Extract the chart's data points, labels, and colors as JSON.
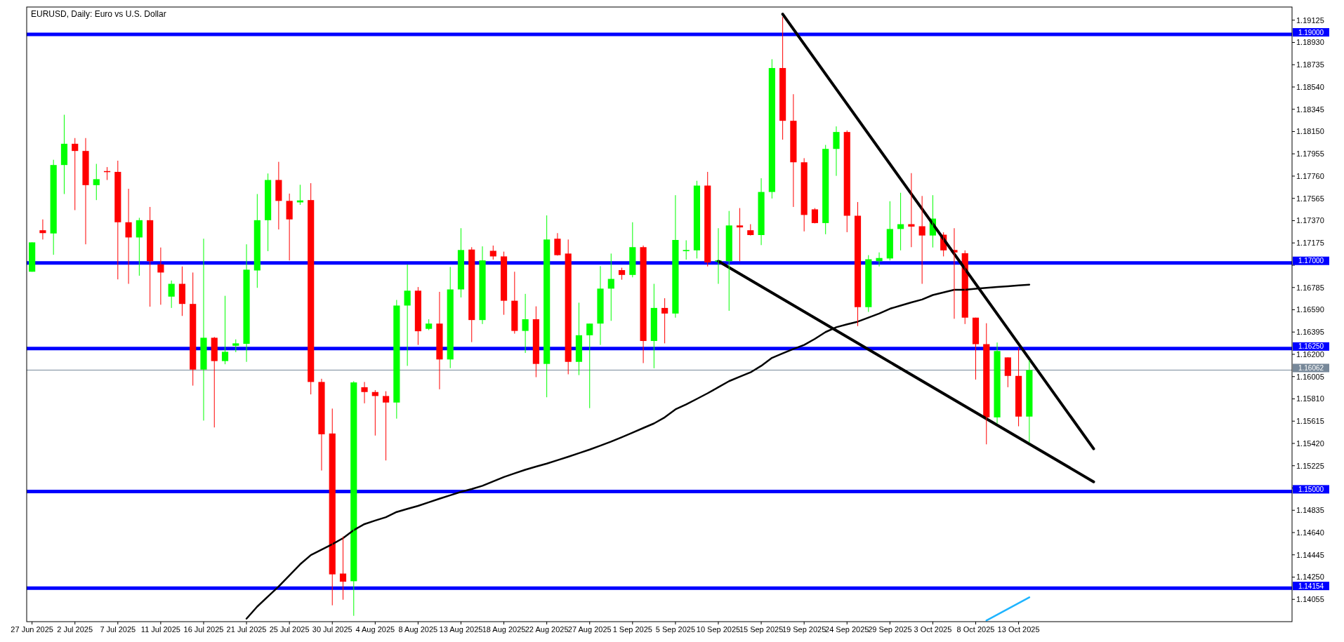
{
  "chart_data": {
    "type": "candlestick",
    "title": "EURUSD, Daily:  Euro vs U.S. Dollar",
    "categories": [
      "27 Jun 2025",
      null,
      null,
      null,
      "2 Jul 2025",
      null,
      null,
      null,
      "7 Jul 2025",
      null,
      null,
      null,
      "11 Jul 2025",
      null,
      null,
      null,
      "16 Jul 2025",
      null,
      null,
      null,
      "21 Jul 2025",
      null,
      null,
      null,
      "25 Jul 2025",
      null,
      null,
      null,
      "30 Jul 2025",
      null,
      null,
      null,
      "4 Aug 2025",
      null,
      null,
      null,
      "8 Aug 2025",
      null,
      null,
      null,
      "13 Aug 2025",
      null,
      null,
      null,
      "18 Aug 2025",
      null,
      null,
      null,
      "22 Aug 2025",
      null,
      null,
      null,
      "27 Aug 2025",
      null,
      null,
      null,
      "1 Sep 2025",
      null,
      null,
      null,
      "5 Sep 2025",
      null,
      null,
      null,
      "10 Sep 2025",
      null,
      null,
      null,
      "15 Sep 2025",
      null,
      null,
      null,
      "19 Sep 2025",
      null,
      null,
      null,
      "24 Sep 2025",
      null,
      null,
      null,
      "29 Sep 2025",
      null,
      null,
      null,
      "3 Oct 2025",
      null,
      null,
      null,
      "8 Oct 2025",
      null,
      null,
      null,
      "13 Oct 2025",
      null,
      null,
      null,
      null,
      null,
      null,
      null,
      null,
      null,
      null,
      null,
      null,
      null,
      null,
      null,
      null,
      null,
      null,
      null,
      null,
      null,
      null,
      null,
      null,
      null
    ],
    "ohlc": [
      [
        1.16923,
        1.1718,
        1.16923,
        1.1718
      ],
      [
        1.17286,
        1.17381,
        1.17205,
        1.17261
      ],
      [
        1.17258,
        1.17903,
        1.17071,
        1.17857
      ],
      [
        1.17857,
        1.18297,
        1.17603,
        1.18043
      ],
      [
        1.18043,
        1.18093,
        1.17462,
        1.1798
      ],
      [
        1.1798,
        1.18093,
        1.17163,
        1.17681
      ],
      [
        1.17681,
        1.17867,
        1.1755,
        1.17733
      ],
      [
        1.17804,
        1.17839,
        1.17726,
        1.17797
      ],
      [
        1.17797,
        1.17895,
        1.16856,
        1.17356
      ],
      [
        1.17356,
        1.17649,
        1.16817,
        1.17223
      ],
      [
        1.17223,
        1.17395,
        1.16888,
        1.17374
      ],
      [
        1.17374,
        1.1749,
        1.16617,
        1.17015
      ],
      [
        1.16987,
        1.17135,
        1.16634,
        1.16916
      ],
      [
        1.16705,
        1.16846,
        1.16606,
        1.16817
      ],
      [
        1.16817,
        1.16969,
        1.16536,
        1.16641
      ],
      [
        1.16641,
        1.16916,
        1.15926,
        1.16067
      ],
      [
        1.16067,
        1.17212,
        1.1562,
        1.16345
      ],
      [
        1.16345,
        1.16352,
        1.1556,
        1.16141
      ],
      [
        1.16141,
        1.16712,
        1.16113,
        1.16222
      ],
      [
        1.16275,
        1.16331,
        1.16219,
        1.16296
      ],
      [
        1.16292,
        1.17163,
        1.16134,
        1.16941
      ],
      [
        1.16934,
        1.17603,
        1.16782,
        1.17374
      ],
      [
        1.17374,
        1.17783,
        1.17103,
        1.17726
      ],
      [
        1.17726,
        1.17885,
        1.17293,
        1.17543
      ],
      [
        1.17543,
        1.17607,
        1.17022,
        1.17381
      ],
      [
        1.1753,
        1.17684,
        1.17508,
        1.17547
      ],
      [
        1.1755,
        1.17698,
        1.15849,
        1.15958
      ],
      [
        1.15958,
        1.15986,
        1.15183,
        1.155
      ],
      [
        1.15507,
        1.15725,
        1.14003,
        1.14274
      ],
      [
        1.14281,
        1.14605,
        1.14052,
        1.1421
      ],
      [
        1.14214,
        1.15965,
        1.13911,
        1.15954
      ],
      [
        1.15912,
        1.15958,
        1.15771,
        1.1587
      ],
      [
        1.1587,
        1.15887,
        1.15489,
        1.15835
      ],
      [
        1.15835,
        1.15877,
        1.15271,
        1.15778
      ],
      [
        1.15778,
        1.16676,
        1.15637,
        1.16627
      ],
      [
        1.16627,
        1.16987,
        1.16099,
        1.16757
      ],
      [
        1.16757,
        1.16789,
        1.16282,
        1.16402
      ],
      [
        1.16423,
        1.16507,
        1.16412,
        1.16469
      ],
      [
        1.16469,
        1.16747,
        1.15894,
        1.16155
      ],
      [
        1.16155,
        1.16965,
        1.16079,
        1.16768
      ],
      [
        1.16768,
        1.17304,
        1.16698,
        1.17113
      ],
      [
        1.17117,
        1.17138,
        1.16307,
        1.165
      ],
      [
        1.165,
        1.17145,
        1.16465,
        1.17022
      ],
      [
        1.17106,
        1.17152,
        1.17029,
        1.17057
      ],
      [
        1.17057,
        1.17099,
        1.16546,
        1.16669
      ],
      [
        1.16669,
        1.16923,
        1.16381,
        1.16405
      ],
      [
        1.16405,
        1.16729,
        1.16212,
        1.16507
      ],
      [
        1.16507,
        1.1662,
        1.16,
        1.16116
      ],
      [
        1.16116,
        1.17416,
        1.15824,
        1.17205
      ],
      [
        1.17212,
        1.17261,
        1.17064,
        1.17068
      ],
      [
        1.17082,
        1.17205,
        1.16025,
        1.16134
      ],
      [
        1.16134,
        1.16652,
        1.16018,
        1.16367
      ],
      [
        1.16367,
        1.16469,
        1.15729,
        1.16469
      ],
      [
        1.16469,
        1.16972,
        1.16282,
        1.16775
      ],
      [
        1.16775,
        1.17082,
        1.16493,
        1.1686
      ],
      [
        1.16937,
        1.16958,
        1.16853,
        1.16895
      ],
      [
        1.16895,
        1.17356,
        1.16874,
        1.17138
      ],
      [
        1.17138,
        1.17152,
        1.16123,
        1.16317
      ],
      [
        1.16317,
        1.16817,
        1.16078,
        1.16606
      ],
      [
        1.16606,
        1.16691,
        1.16296,
        1.16557
      ],
      [
        1.16557,
        1.17593,
        1.16521,
        1.17201
      ],
      [
        1.17103,
        1.17198,
        1.17029,
        1.17113
      ],
      [
        1.1711,
        1.17719,
        1.17039,
        1.17677
      ],
      [
        1.17677,
        1.17797,
        1.16969,
        1.17004
      ],
      [
        1.17011,
        1.17304,
        1.16817,
        1.17022
      ],
      [
        1.17015,
        1.17455,
        1.16581,
        1.17328
      ],
      [
        1.17328,
        1.1748,
        1.17015,
        1.17311
      ],
      [
        1.17286,
        1.17339,
        1.1724,
        1.17244
      ],
      [
        1.17244,
        1.17741,
        1.17156,
        1.17621
      ],
      [
        1.17621,
        1.18783,
        1.17564,
        1.18706
      ],
      [
        1.18706,
        1.19153,
        1.18079,
        1.18244
      ],
      [
        1.18244,
        1.18477,
        1.1749,
        1.17881
      ],
      [
        1.17881,
        1.17917,
        1.17276,
        1.1742
      ],
      [
        1.17469,
        1.1748,
        1.17346,
        1.17349
      ],
      [
        1.17349,
        1.18033,
        1.17251,
        1.17998
      ],
      [
        1.17998,
        1.18195,
        1.17762,
        1.18146
      ],
      [
        1.18146,
        1.1816,
        1.17269,
        1.17413
      ],
      [
        1.17413,
        1.17533,
        1.16447,
        1.16613
      ],
      [
        1.16613,
        1.17068,
        1.16571,
        1.17032
      ],
      [
        1.17015,
        1.17092,
        1.16969,
        1.17043
      ],
      [
        1.17039,
        1.1754,
        1.17022,
        1.17297
      ],
      [
        1.17297,
        1.17614,
        1.1711,
        1.17339
      ],
      [
        1.17339,
        1.17786,
        1.17138,
        1.17318
      ],
      [
        1.17321,
        1.17586,
        1.16817,
        1.1724
      ],
      [
        1.1724,
        1.17593,
        1.17135,
        1.17388
      ],
      [
        1.17247,
        1.17268,
        1.17057,
        1.1711
      ],
      [
        1.17113,
        1.17304,
        1.16511,
        1.17092
      ],
      [
        1.17085,
        1.1711,
        1.16465,
        1.16521
      ],
      [
        1.16521,
        1.16521,
        1.15979,
        1.16289
      ],
      [
        1.16289,
        1.16472,
        1.15412,
        1.15648
      ],
      [
        1.15648,
        1.16303,
        1.15595,
        1.16229
      ],
      [
        1.16173,
        1.16173,
        1.15912,
        1.16011
      ],
      [
        1.16011,
        1.16254,
        1.1557,
        1.15655
      ],
      [
        1.15655,
        1.16148,
        1.15429,
        1.16062
      ],
      null,
      null,
      null,
      null,
      null,
      null,
      null,
      null,
      null,
      null,
      null,
      null,
      null,
      null,
      null,
      null,
      null,
      null,
      null,
      null,
      null,
      null,
      null,
      null
    ],
    "colors": [
      "#00ff00",
      "#ff0000",
      "#00ff00",
      "#00ff00",
      "#ff0000",
      "#ff0000",
      "#00ff00",
      "#ff0000",
      "#ff0000",
      "#ff0000",
      "#00ff00",
      "#ff0000",
      "#ff0000",
      "#00ff00",
      "#ff0000",
      "#ff0000",
      "#00ff00",
      "#ff0000",
      "#00ff00",
      "#00ff00",
      "#00ff00",
      "#00ff00",
      "#00ff00",
      "#ff0000",
      "#ff0000",
      "#00ff00",
      "#ff0000",
      "#ff0000",
      "#ff0000",
      "#ff0000",
      "#00ff00",
      "#ff0000",
      "#ff0000",
      "#ff0000",
      "#00ff00",
      "#00ff00",
      "#ff0000",
      "#00ff00",
      "#ff0000",
      "#00ff00",
      "#00ff00",
      "#ff0000",
      "#00ff00",
      "#ff0000",
      "#ff0000",
      "#ff0000",
      "#00ff00",
      "#ff0000",
      "#00ff00",
      "#ff0000",
      "#ff0000",
      "#00ff00",
      "#00ff00",
      "#00ff00",
      "#00ff00",
      "#ff0000",
      "#00ff00",
      "#ff0000",
      "#00ff00",
      "#ff0000",
      "#00ff00",
      "#00ff00",
      "#00ff00",
      "#ff0000",
      "#00ff00",
      "#00ff00",
      "#ff0000",
      "#ff0000",
      "#00ff00",
      "#00ff00",
      "#ff0000",
      "#ff0000",
      "#ff0000",
      "#ff0000",
      "#00ff00",
      "#00ff00",
      "#ff0000",
      "#ff0000",
      "#00ff00",
      "#00ff00",
      "#00ff00",
      "#00ff00",
      "#ff0000",
      "#ff0000",
      "#00ff00",
      "#ff0000",
      "#ff0000",
      "#ff0000",
      "#ff0000",
      "#ff0000",
      "#00ff00",
      "#ff0000",
      "#ff0000",
      "#00ff00",
      null,
      null,
      null,
      null,
      null,
      null,
      null,
      null,
      null,
      null,
      null,
      null,
      null,
      null,
      null,
      null,
      null,
      null,
      null,
      null,
      null,
      null,
      null,
      null
    ],
    "series": [
      {
        "type": "line",
        "color": "#000000",
        "values": [
          null,
          null,
          null,
          null,
          null,
          null,
          null,
          null,
          null,
          null,
          null,
          null,
          null,
          null,
          null,
          null,
          null,
          null,
          null,
          null,
          1.13886,
          1.13992,
          1.1408,
          1.14168,
          1.14265,
          1.14362,
          1.14443,
          1.1449,
          1.14538,
          1.14591,
          1.14661,
          1.14714,
          1.14745,
          1.14774,
          1.1482,
          1.14847,
          1.14873,
          1.14905,
          1.14936,
          1.14966,
          1.14996,
          1.15021,
          1.15049,
          1.15088,
          1.15126,
          1.15158,
          1.1519,
          1.15217,
          1.15243,
          1.15273,
          1.15303,
          1.15335,
          1.15366,
          1.15401,
          1.15436,
          1.15475,
          1.15514,
          1.15555,
          1.15595,
          1.15648,
          1.15718,
          1.15761,
          1.1581,
          1.15859,
          1.15912,
          1.15965,
          1.16004,
          1.16042,
          1.16099,
          1.16169,
          1.16208,
          1.16247,
          1.16282,
          1.16335,
          1.16395,
          1.16437,
          1.16462,
          1.16486,
          1.16522,
          1.16557,
          1.16599,
          1.16627,
          1.16654,
          1.1668,
          1.16719,
          1.16742,
          1.16765,
          1.16765,
          1.16774,
          1.16782,
          1.16789,
          1.16796,
          1.16803,
          1.1681,
          null,
          null,
          null,
          null,
          null,
          null,
          null,
          null,
          null,
          null,
          null,
          null,
          null,
          null,
          null,
          null,
          null,
          null,
          null,
          null,
          null,
          null,
          null,
          null
        ]
      },
      {
        "type": "line",
        "color": "#000000",
        "values": [
          null,
          null,
          null,
          null,
          null,
          null,
          null,
          null,
          null,
          null,
          null,
          null,
          null,
          null,
          null,
          null,
          null,
          null,
          null,
          null,
          null,
          null,
          null,
          null,
          null,
          null,
          null,
          null,
          null,
          null,
          null,
          null,
          null,
          null,
          null,
          null,
          null,
          null,
          null,
          null,
          null,
          null,
          null,
          null,
          null,
          null,
          null,
          null,
          null,
          null,
          null,
          null,
          null,
          null,
          null,
          null,
          null,
          null,
          null,
          null,
          null,
          null,
          null,
          null,
          null,
          null,
          null,
          null,
          null,
          null,
          1.19178,
          null,
          null,
          null,
          null,
          null,
          null,
          null,
          null,
          null,
          null,
          null,
          null,
          null,
          null,
          null,
          null,
          null,
          null,
          null,
          null,
          null,
          null,
          null,
          null,
          null,
          null,
          null,
          null,
          1.15373,
          null,
          null,
          null,
          null,
          null,
          null,
          null,
          null,
          null,
          null,
          null,
          null,
          null,
          null,
          null,
          null,
          null,
          null
        ]
      },
      {
        "type": "line",
        "color": "#000000",
        "values": [
          null,
          null,
          null,
          null,
          null,
          null,
          null,
          null,
          null,
          null,
          null,
          null,
          null,
          null,
          null,
          null,
          null,
          null,
          null,
          null,
          null,
          null,
          null,
          null,
          null,
          null,
          null,
          null,
          null,
          null,
          null,
          null,
          null,
          null,
          null,
          null,
          null,
          null,
          null,
          null,
          null,
          null,
          null,
          null,
          null,
          null,
          null,
          null,
          null,
          null,
          null,
          null,
          null,
          null,
          null,
          null,
          null,
          null,
          null,
          null,
          null,
          null,
          null,
          null,
          1.17015,
          null,
          null,
          null,
          null,
          null,
          null,
          null,
          null,
          null,
          null,
          null,
          null,
          null,
          null,
          null,
          null,
          null,
          null,
          null,
          null,
          null,
          null,
          null,
          null,
          null,
          null,
          null,
          null,
          null,
          null,
          null,
          null,
          null,
          null,
          1.15084,
          null,
          null,
          null,
          null,
          null,
          null,
          null,
          null,
          null,
          null,
          null,
          null,
          null,
          null,
          null,
          null,
          null,
          null
        ]
      },
      {
        "type": "line",
        "color": "#1eb4ff",
        "values": [
          null,
          null,
          null,
          null,
          null,
          null,
          null,
          null,
          null,
          null,
          null,
          null,
          null,
          null,
          null,
          null,
          null,
          null,
          null,
          null,
          null,
          null,
          null,
          null,
          null,
          null,
          null,
          null,
          null,
          null,
          null,
          null,
          null,
          null,
          null,
          null,
          null,
          null,
          null,
          null,
          null,
          null,
          null,
          null,
          null,
          null,
          null,
          null,
          null,
          null,
          null,
          null,
          null,
          null,
          null,
          null,
          null,
          null,
          null,
          null,
          null,
          null,
          null,
          null,
          null,
          null,
          null,
          null,
          null,
          null,
          null,
          null,
          null,
          null,
          null,
          null,
          null,
          null,
          null,
          null,
          null,
          null,
          null,
          null,
          null,
          null,
          null,
          null,
          null,
          1.1387,
          null,
          null,
          null,
          1.14073,
          null,
          null,
          null,
          null,
          null,
          null,
          null,
          null,
          null,
          null,
          null,
          null,
          null,
          null,
          null,
          null,
          null,
          null,
          null,
          null,
          null,
          null,
          null,
          null
        ]
      }
    ],
    "ylim": [
      1.1386,
      1.1924
    ],
    "yticks": [
      1.14055,
      {
        "value": 1.1425,
        "label": "1.14250"
      },
      1.14445,
      {
        "value": 1.1464,
        "label": "1.14640"
      },
      1.14835,
      {
        "value": 1.1503,
        "label": null
      },
      1.15225,
      {
        "value": 1.1542,
        "label": "1.15420"
      },
      1.15615,
      {
        "value": 1.1581,
        "label": "1.15810"
      },
      1.16005,
      {
        "value": 1.162,
        "label": "1.16200"
      },
      1.16395,
      {
        "value": 1.1659,
        "label": "1.16590"
      },
      1.16785,
      {
        "value": 1.1698,
        "label": null
      },
      1.17175,
      {
        "value": 1.1737,
        "label": "1.17370"
      },
      1.17565,
      {
        "value": 1.1776,
        "label": "1.17760"
      },
      1.17955,
      {
        "value": 1.1815,
        "label": "1.18150"
      },
      1.18345,
      {
        "value": 1.1854,
        "label": "1.18540"
      },
      1.18735,
      {
        "value": 1.1893,
        "label": "1.18930"
      },
      1.19125
    ],
    "ref_lines": [
      {
        "axis": "y",
        "value": 1.19,
        "label": "1.19000",
        "color": "#0000ff"
      },
      {
        "axis": "y",
        "value": 1.17,
        "label": "1.17000",
        "color": "#0000ff"
      },
      {
        "axis": "y",
        "value": 1.1625,
        "label": "1.16250",
        "color": "#0000ff"
      },
      {
        "axis": "y",
        "value": 1.15,
        "label": "1.15000",
        "color": "#0000ff"
      },
      {
        "axis": "y",
        "value": 1.14154,
        "label": "1.14154",
        "color": "#0000ff"
      },
      {
        "axis": "y",
        "value": 1.16062,
        "label": "1.16062",
        "color": "#778899",
        "line_style": "solid"
      }
    ]
  }
}
